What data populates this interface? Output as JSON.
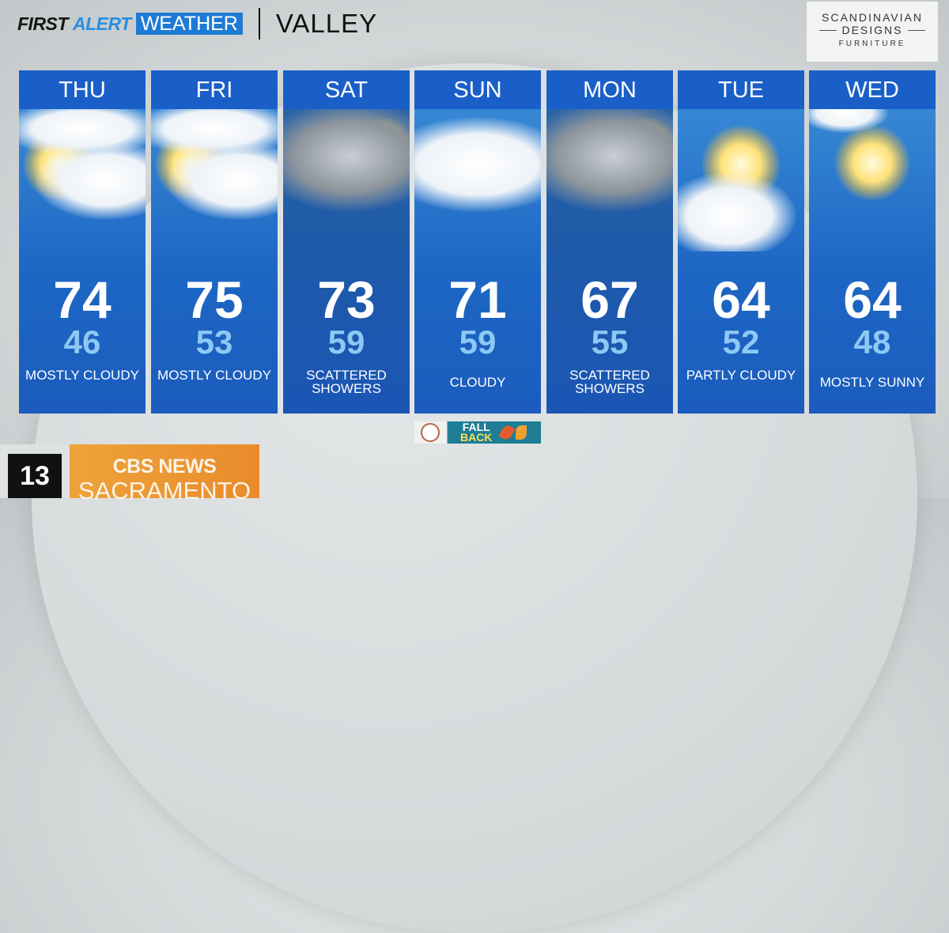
{
  "header": {
    "first": "FIRST",
    "alert": "ALERT",
    "weather": "WEATHER",
    "region": "VALLEY"
  },
  "sponsor": {
    "line1": "SCANDINAVIAN",
    "line2": "DESIGNS",
    "line3": "FURNITURE"
  },
  "forecast": [
    {
      "day": "THU",
      "high": "74",
      "low": "46",
      "condition": "MOSTLY CLOUDY",
      "icon": "mostly-cloudy-icon"
    },
    {
      "day": "FRI",
      "high": "75",
      "low": "53",
      "condition": "MOSTLY CLOUDY",
      "icon": "mostly-cloudy-icon"
    },
    {
      "day": "SAT",
      "high": "73",
      "low": "59",
      "condition": "SCATTERED SHOWERS",
      "icon": "showers-icon"
    },
    {
      "day": "SUN",
      "high": "71",
      "low": "59",
      "condition": "CLOUDY",
      "icon": "cloudy-icon"
    },
    {
      "day": "MON",
      "high": "67",
      "low": "55",
      "condition": "SCATTERED SHOWERS",
      "icon": "showers-icon"
    },
    {
      "day": "TUE",
      "high": "64",
      "low": "52",
      "condition": "PARTLY CLOUDY",
      "icon": "partly-cloudy-icon"
    },
    {
      "day": "WED",
      "high": "64",
      "low": "48",
      "condition": "MOSTLY SUNNY",
      "icon": "sunny-icon"
    }
  ],
  "banner": {
    "line1": "FALL",
    "line2": "BACK"
  },
  "station": {
    "channel": "13",
    "brand": "CBS NEWS",
    "city": "SACRAMENTO"
  },
  "colors": {
    "header_blue": "#1a5fc8",
    "accent_blue": "#1e7bd3",
    "low_temp": "#8ec9f5",
    "orange": "#eea33a"
  }
}
